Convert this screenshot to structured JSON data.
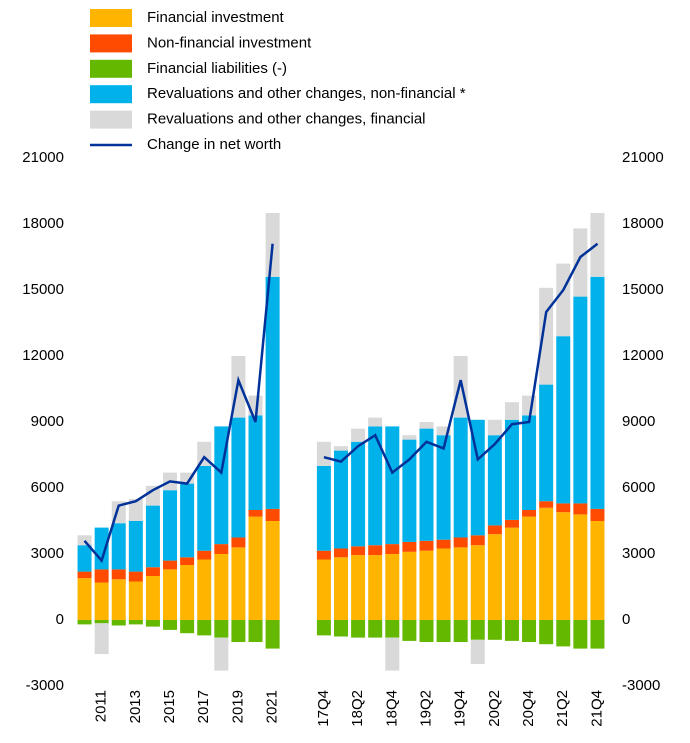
{
  "chart_data": {
    "type": "bar",
    "stacked": true,
    "categories": [
      null,
      "2011",
      null,
      "2013",
      null,
      "2015",
      null,
      "2017",
      null,
      "2019",
      null,
      "2021",
      null,
      null,
      "17Q4",
      null,
      "18Q2",
      null,
      "18Q4",
      null,
      "19Q2",
      null,
      "19Q4",
      null,
      "20Q2",
      null,
      "20Q4",
      null,
      "21Q2",
      null,
      "21Q4"
    ],
    "series": [
      {
        "name": "Financial investment",
        "color": "#ffb400",
        "values": [
          1900,
          1700,
          1850,
          1750,
          2000,
          2300,
          2500,
          2750,
          3000,
          3300,
          4700,
          4500,
          null,
          null,
          2750,
          2850,
          2950,
          2950,
          3000,
          3100,
          3150,
          3250,
          3300,
          3400,
          3900,
          4200,
          4700,
          5100,
          4900,
          4800,
          4500
        ]
      },
      {
        "name": "Non-financial investment",
        "color": "#ff4b00",
        "values": [
          300,
          600,
          450,
          450,
          400,
          400,
          350,
          400,
          450,
          450,
          300,
          550,
          null,
          null,
          400,
          400,
          400,
          450,
          450,
          450,
          450,
          400,
          450,
          450,
          400,
          350,
          300,
          300,
          400,
          500,
          550
        ]
      },
      {
        "name": "Financial liabilities (-)",
        "color": "#65b800",
        "values": [
          -200,
          -150,
          -250,
          -200,
          -300,
          -450,
          -600,
          -700,
          -800,
          -1000,
          -1000,
          -1300,
          null,
          null,
          -700,
          -750,
          -800,
          -800,
          -800,
          -950,
          -1000,
          -1000,
          -1000,
          -900,
          -900,
          -950,
          -1000,
          -1100,
          -1200,
          -1300,
          -1300
        ]
      },
      {
        "name": "Revaluations and other changes, non-financial *",
        "color": "#00b1ea",
        "values": [
          1200,
          1900,
          2100,
          2300,
          2800,
          3200,
          3350,
          3850,
          5350,
          5450,
          4300,
          10550,
          null,
          null,
          3850,
          4450,
          4750,
          5400,
          5350,
          4650,
          5100,
          4750,
          5450,
          5250,
          4100,
          4550,
          4300,
          5300,
          7600,
          9400,
          10550
        ]
      },
      {
        "name": "Revaluations and other changes, financial",
        "color": "#d9d9d9",
        "values": [
          450,
          -1400,
          1000,
          1000,
          900,
          800,
          500,
          1100,
          -1500,
          2800,
          900,
          2900,
          null,
          null,
          1100,
          200,
          600,
          400,
          -1500,
          200,
          300,
          400,
          2800,
          -1100,
          700,
          800,
          900,
          4400,
          3300,
          3100,
          2900
        ]
      },
      {
        "name": "Change in net worth",
        "color": "#003299",
        "type": "line",
        "values": [
          3600,
          2700,
          5200,
          5400,
          5900,
          6300,
          6200,
          7400,
          6700,
          10900,
          9000,
          17100,
          null,
          null,
          7400,
          7200,
          7900,
          8400,
          6700,
          7300,
          8100,
          7800,
          10900,
          7300,
          8000,
          8900,
          9000,
          14000,
          15000,
          16500,
          17100
        ]
      }
    ],
    "ylim": [
      -3000,
      21000
    ],
    "yticks": [
      -3000,
      0,
      3000,
      6000,
      9000,
      12000,
      15000,
      18000,
      21000
    ]
  }
}
